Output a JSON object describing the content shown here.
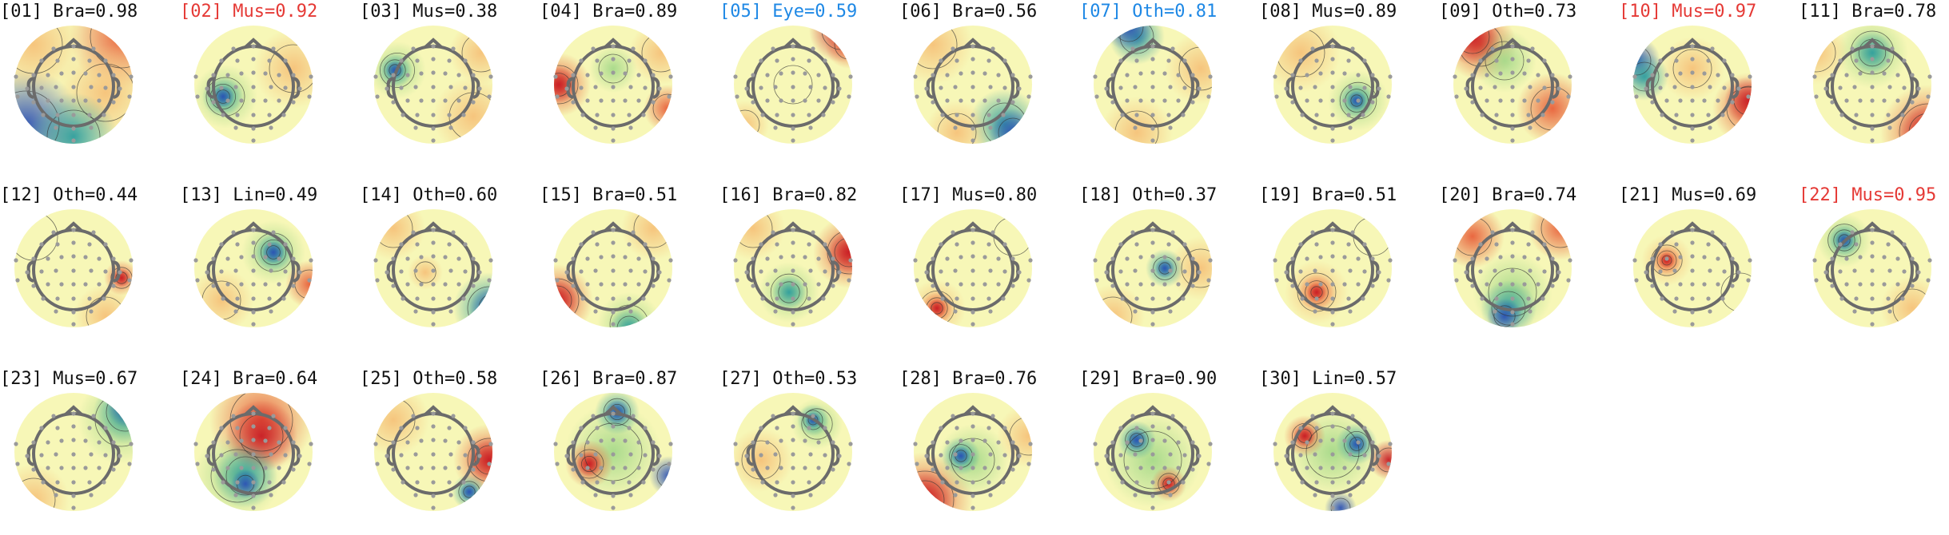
{
  "colors": {
    "default_label": "#111111",
    "eye_label": "#1e88e5",
    "muscle_highlight_label": "#e53935",
    "head_outline": "#6b6b6b",
    "electrode": "#9a9a9a",
    "colormap": [
      "#2c52b5",
      "#2f9e9e",
      "#a6d98a",
      "#f7f7b7",
      "#f6c27a",
      "#e8603a",
      "#c81d25"
    ]
  },
  "components": [
    {
      "index": "[01]",
      "class": "Bra",
      "prob": "0.98",
      "label": "[01] Bra=0.98",
      "label_color": "default"
    },
    {
      "index": "[02]",
      "class": "Mus",
      "prob": "0.92",
      "label": "[02] Mus=0.92",
      "label_color": "red"
    },
    {
      "index": "[03]",
      "class": "Mus",
      "prob": "0.38",
      "label": "[03] Mus=0.38",
      "label_color": "default"
    },
    {
      "index": "[04]",
      "class": "Bra",
      "prob": "0.89",
      "label": "[04] Bra=0.89",
      "label_color": "default"
    },
    {
      "index": "[05]",
      "class": "Eye",
      "prob": "0.59",
      "label": "[05] Eye=0.59",
      "label_color": "blue"
    },
    {
      "index": "[06]",
      "class": "Bra",
      "prob": "0.56",
      "label": "[06] Bra=0.56",
      "label_color": "default"
    },
    {
      "index": "[07]",
      "class": "Oth",
      "prob": "0.81",
      "label": "[07] Oth=0.81",
      "label_color": "blue"
    },
    {
      "index": "[08]",
      "class": "Mus",
      "prob": "0.89",
      "label": "[08] Mus=0.89",
      "label_color": "default"
    },
    {
      "index": "[09]",
      "class": "Oth",
      "prob": "0.73",
      "label": "[09] Oth=0.73",
      "label_color": "default"
    },
    {
      "index": "[10]",
      "class": "Mus",
      "prob": "0.97",
      "label": "[10] Mus=0.97",
      "label_color": "red"
    },
    {
      "index": "[11]",
      "class": "Bra",
      "prob": "0.78",
      "label": "[11] Bra=0.78",
      "label_color": "default"
    },
    {
      "index": "[12]",
      "class": "Oth",
      "prob": "0.44",
      "label": "[12] Oth=0.44",
      "label_color": "default"
    },
    {
      "index": "[13]",
      "class": "Lin",
      "prob": "0.49",
      "label": "[13] Lin=0.49",
      "label_color": "default"
    },
    {
      "index": "[14]",
      "class": "Oth",
      "prob": "0.60",
      "label": "[14] Oth=0.60",
      "label_color": "default"
    },
    {
      "index": "[15]",
      "class": "Bra",
      "prob": "0.51",
      "label": "[15] Bra=0.51",
      "label_color": "default"
    },
    {
      "index": "[16]",
      "class": "Bra",
      "prob": "0.82",
      "label": "[16] Bra=0.82",
      "label_color": "default"
    },
    {
      "index": "[17]",
      "class": "Mus",
      "prob": "0.80",
      "label": "[17] Mus=0.80",
      "label_color": "default"
    },
    {
      "index": "[18]",
      "class": "Oth",
      "prob": "0.37",
      "label": "[18] Oth=0.37",
      "label_color": "default"
    },
    {
      "index": "[19]",
      "class": "Bra",
      "prob": "0.51",
      "label": "[19] Bra=0.51",
      "label_color": "default"
    },
    {
      "index": "[20]",
      "class": "Bra",
      "prob": "0.74",
      "label": "[20] Bra=0.74",
      "label_color": "default"
    },
    {
      "index": "[21]",
      "class": "Mus",
      "prob": "0.69",
      "label": "[21] Mus=0.69",
      "label_color": "default"
    },
    {
      "index": "[22]",
      "class": "Mus",
      "prob": "0.95",
      "label": "[22] Mus=0.95",
      "label_color": "red"
    },
    {
      "index": "[23]",
      "class": "Mus",
      "prob": "0.67",
      "label": "[23] Mus=0.67",
      "label_color": "default"
    },
    {
      "index": "[24]",
      "class": "Bra",
      "prob": "0.64",
      "label": "[24] Bra=0.64",
      "label_color": "default"
    },
    {
      "index": "[25]",
      "class": "Oth",
      "prob": "0.58",
      "label": "[25] Oth=0.58",
      "label_color": "default"
    },
    {
      "index": "[26]",
      "class": "Bra",
      "prob": "0.87",
      "label": "[26] Bra=0.87",
      "label_color": "default"
    },
    {
      "index": "[27]",
      "class": "Oth",
      "prob": "0.53",
      "label": "[27] Oth=0.53",
      "label_color": "default"
    },
    {
      "index": "[28]",
      "class": "Bra",
      "prob": "0.76",
      "label": "[28] Bra=0.76",
      "label_color": "default"
    },
    {
      "index": "[29]",
      "class": "Bra",
      "prob": "0.90",
      "label": "[29] Bra=0.90",
      "label_color": "default"
    },
    {
      "index": "[30]",
      "class": "Lin",
      "prob": "0.57",
      "label": "[30] Lin=0.57",
      "label_color": "default"
    }
  ]
}
